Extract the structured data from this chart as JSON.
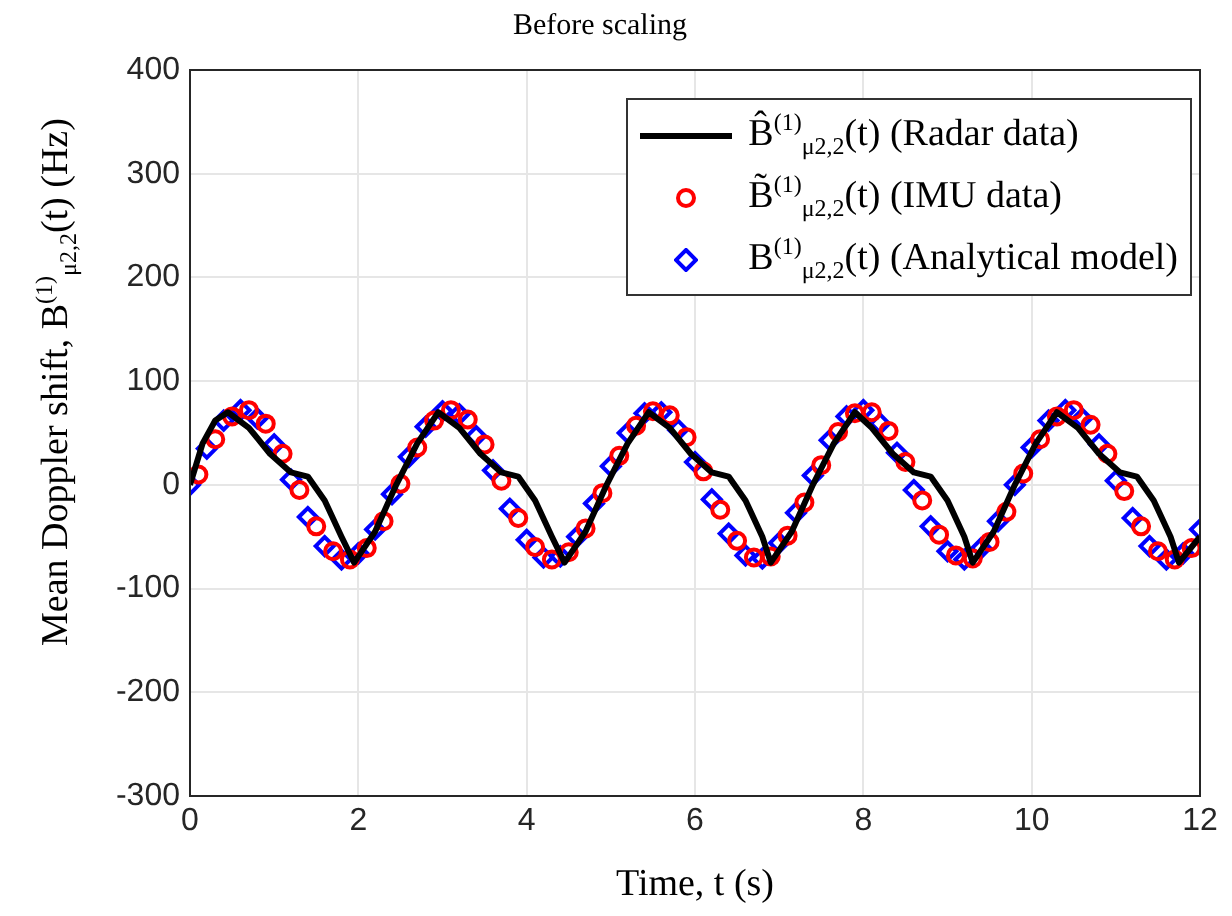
{
  "chart_data": {
    "type": "line",
    "title": "Before scaling",
    "xlabel": "Time, t (s)",
    "ylabel": "Mean Doppler shift, B$^{(1)}$$_{μ2,2}$(t) (Hz)",
    "xlim": [
      0,
      12
    ],
    "xticks": [
      0,
      2,
      4,
      6,
      8,
      10,
      12
    ],
    "ylim": [
      -300,
      400
    ],
    "yticks": [
      -300,
      -200,
      -100,
      0,
      100,
      200,
      300,
      400
    ],
    "grid": true,
    "legend": "top right",
    "series": [
      {
        "name": "B̂$^{(1)}$$_{μ2,2}$(t) (Radar data)",
        "marker": "none",
        "line_style": "solid",
        "color": "#000000",
        "x": [
          0,
          0.15,
          0.3,
          0.45,
          0.7,
          0.95,
          1.2,
          1.4,
          1.6,
          1.8,
          1.95,
          2.2,
          2.45,
          2.7,
          2.95,
          3.2,
          3.45,
          3.7,
          3.9,
          4.1,
          4.3,
          4.45,
          4.7,
          4.95,
          5.2,
          5.45,
          5.7,
          5.95,
          6.2,
          6.4,
          6.6,
          6.8,
          6.9,
          7.15,
          7.4,
          7.65,
          7.9,
          8.1,
          8.35,
          8.6,
          8.8,
          9.0,
          9.2,
          9.3,
          9.55,
          9.8,
          10.05,
          10.3,
          10.55,
          10.8,
          11.05,
          11.25,
          11.45,
          11.65,
          11.75,
          12
        ],
        "values": [
          0,
          40,
          62,
          70,
          55,
          30,
          12,
          8,
          -15,
          -50,
          -75,
          -45,
          0,
          40,
          70,
          55,
          30,
          12,
          8,
          -15,
          -50,
          -75,
          -45,
          0,
          40,
          70,
          55,
          30,
          12,
          8,
          -15,
          -50,
          -75,
          -45,
          0,
          40,
          70,
          55,
          30,
          12,
          8,
          -15,
          -50,
          -75,
          -45,
          0,
          40,
          70,
          55,
          30,
          12,
          8,
          -15,
          -50,
          -75,
          -50
        ]
      },
      {
        "name": "B̃$^{(1)}$$_{μ2,2}$(t) (IMU data)",
        "type": "scatter",
        "marker": "circle",
        "color": "#ff0000",
        "x": [
          0.1,
          0.3,
          0.5,
          0.7,
          0.9,
          1.1,
          1.3,
          1.5,
          1.7,
          1.9,
          2.1,
          2.3,
          2.5,
          2.7,
          2.9,
          3.1,
          3.3,
          3.5,
          3.7,
          3.9,
          4.1,
          4.3,
          4.5,
          4.7,
          4.9,
          5.1,
          5.3,
          5.5,
          5.7,
          5.9,
          6.1,
          6.3,
          6.5,
          6.7,
          6.9,
          7.1,
          7.3,
          7.5,
          7.7,
          7.9,
          8.1,
          8.3,
          8.5,
          8.7,
          8.9,
          9.1,
          9.3,
          9.5,
          9.7,
          9.9,
          10.1,
          10.3,
          10.5,
          10.7,
          10.9,
          11.1,
          11.3,
          11.5,
          11.7,
          11.9
        ],
        "values": [
          10,
          44,
          66,
          72,
          59,
          30,
          -5,
          -40,
          -64,
          -72,
          -61,
          -35,
          1,
          36,
          62,
          72,
          63,
          39,
          4,
          -32,
          -60,
          -72,
          -65,
          -42,
          -8,
          28,
          57,
          71,
          67,
          46,
          13,
          -24,
          -54,
          -70,
          -69,
          -49,
          -17,
          19,
          51,
          69,
          70,
          52,
          22,
          -15,
          -48,
          -68,
          -71,
          -55,
          -26,
          11,
          44,
          66,
          72,
          58,
          30,
          -6,
          -40,
          -64,
          -72,
          -61
        ]
      },
      {
        "name": "B$^{(1)}$$_{μ2,2}$(t) (Analytical model)",
        "type": "scatter",
        "marker": "diamond",
        "color": "#0000ff",
        "x": [
          0,
          0.2,
          0.4,
          0.6,
          0.8,
          1,
          1.2,
          1.4,
          1.6,
          1.8,
          2,
          2.2,
          2.4,
          2.6,
          2.8,
          3,
          3.2,
          3.4,
          3.6,
          3.8,
          4,
          4.2,
          4.4,
          4.6,
          4.8,
          5,
          5.2,
          5.4,
          5.6,
          5.8,
          6,
          6.2,
          6.4,
          6.6,
          6.8,
          7,
          7.2,
          7.4,
          7.6,
          7.8,
          8,
          8.2,
          8.4,
          8.6,
          8.8,
          9,
          9.2,
          9.4,
          9.6,
          9.8,
          10,
          10.2,
          10.4,
          10.6,
          10.8,
          11,
          11.2,
          11.4,
          11.6,
          11.8,
          12
        ],
        "values": [
          0,
          35,
          62,
          72,
          64,
          39,
          5,
          -31,
          -59,
          -72,
          -66,
          -43,
          -9,
          27,
          56,
          71,
          68,
          47,
          14,
          -23,
          -53,
          -70,
          -69,
          -50,
          -18,
          18,
          50,
          69,
          70,
          53,
          22,
          -14,
          -47,
          -68,
          -71,
          -56,
          -27,
          9,
          43,
          66,
          72,
          59,
          31,
          -5,
          -40,
          -64,
          -72,
          -61,
          -35,
          0,
          36,
          62,
          72,
          64,
          39,
          4,
          -32,
          -59,
          -72,
          -66,
          -43
        ]
      }
    ]
  }
}
